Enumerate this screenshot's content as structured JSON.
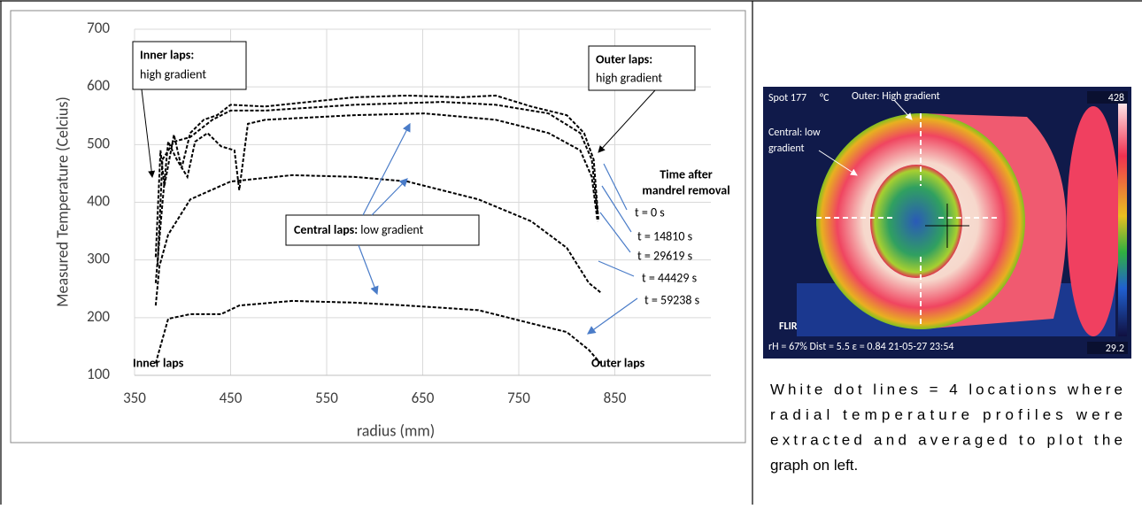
{
  "chart_data": {
    "type": "line",
    "xlabel": "radius (mm)",
    "ylabel": "Measured Temperature (Celcius)",
    "xlim": [
      350,
      950
    ],
    "ylim": [
      100,
      700
    ],
    "xticks": [
      350,
      450,
      550,
      650,
      750,
      850
    ],
    "yticks": [
      100,
      200,
      300,
      400,
      500,
      600,
      700
    ],
    "grid": true,
    "series": [
      {
        "name": "t = 0 s",
        "color": "#000000",
        "x": [
          372,
          377,
          381,
          391,
          399,
          408,
          422,
          436,
          450,
          486,
          532,
          579,
          634,
          689,
          726,
          763,
          800,
          818,
          828,
          833
        ],
        "values": [
          305,
          490,
          428,
          517,
          459,
          520,
          543,
          551,
          569,
          566,
          574,
          582,
          585,
          582,
          585,
          566,
          551,
          520,
          474,
          367
        ]
      },
      {
        "name": "t = 14810 s",
        "color": "#000000",
        "x": [
          374,
          379,
          391,
          408,
          431,
          450,
          486,
          579,
          671,
          726,
          781,
          814,
          826,
          832
        ],
        "values": [
          290,
          474,
          505,
          513,
          543,
          559,
          559,
          569,
          574,
          569,
          554,
          520,
          474,
          382
        ]
      },
      {
        "name": "t = 29619 s",
        "color": "#000000",
        "x": [
          372,
          379,
          385,
          394,
          405,
          413,
          426,
          440,
          454,
          459,
          468,
          486,
          579,
          652,
          726,
          781,
          814,
          826,
          832
        ],
        "values": [
          260,
          398,
          505,
          474,
          444,
          505,
          520,
          497,
          490,
          421,
          536,
          543,
          551,
          554,
          543,
          520,
          490,
          444,
          367
        ]
      },
      {
        "name": "t = 44429 s",
        "color": "#000000",
        "x": [
          372,
          376,
          385,
          408,
          450,
          514,
          579,
          634,
          708,
          763,
          800,
          823,
          835
        ],
        "values": [
          221,
          290,
          344,
          405,
          436,
          447,
          444,
          436,
          405,
          367,
          321,
          260,
          244
        ]
      },
      {
        "name": "t = 59238 s",
        "color": "#000000",
        "x": [
          372,
          385,
          408,
          440,
          459,
          514,
          579,
          634,
          708,
          763,
          800,
          823,
          835
        ],
        "values": [
          121,
          198,
          206,
          206,
          221,
          229,
          226,
          221,
          213,
          190,
          175,
          144,
          121
        ]
      }
    ],
    "annotations": [
      {
        "bold": "Inner laps:",
        "text": "high gradient"
      },
      {
        "bold": "Outer laps:",
        "text": "high gradient"
      },
      {
        "bold": "Central laps:",
        "text": " low gradient"
      }
    ],
    "legend_title": [
      "Time after",
      "mandrel removal"
    ],
    "end_labels": [
      "Inner laps",
      "Outer laps"
    ]
  },
  "image": {
    "spot": "Spot 177",
    "unit": "°C",
    "outer": "Outer: High gradient",
    "max": "428",
    "central": [
      "Central: low",
      "gradient"
    ],
    "brand": "FLIR",
    "info": "rH = 67%  Dist = 5.5  ε = 0.84  21-05-27 23:54",
    "min": "29.2"
  },
  "caption": [
    "White dot lines = 4 locations where",
    "radial temperature profiles were",
    "extracted and averaged to plot the",
    "graph on left."
  ]
}
